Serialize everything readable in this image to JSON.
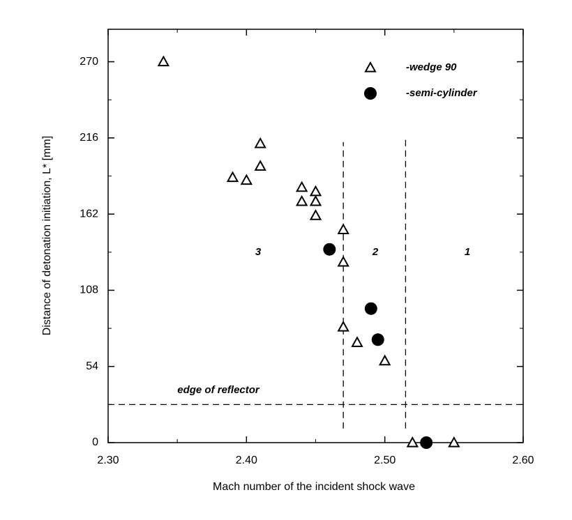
{
  "chart_data": {
    "type": "scatter",
    "xlabel": "Mach number of the incident shock wave",
    "ylabel": "Distance of detonation initiation, L* [mm]",
    "xlim": [
      2.3,
      2.6
    ],
    "ylim": [
      0,
      293
    ],
    "xticks": [
      {
        "value": 2.3,
        "label": "2.30"
      },
      {
        "value": 2.4,
        "label": "2.40"
      },
      {
        "value": 2.5,
        "label": "2.50"
      },
      {
        "value": 2.6,
        "label": "2.60"
      }
    ],
    "yticks": [
      0,
      54,
      108,
      162,
      216,
      270
    ],
    "series": [
      {
        "name": "-wedge 90",
        "marker": "triangle",
        "color": "#000000",
        "x": [
          2.34,
          2.41,
          2.41,
          2.39,
          2.4,
          2.44,
          2.44,
          2.45,
          2.45,
          2.45,
          2.47,
          2.47,
          2.47,
          2.48,
          2.5,
          2.52,
          2.55
        ],
        "values": [
          270,
          212,
          196,
          188,
          186,
          181,
          171,
          178,
          171,
          161,
          151,
          128,
          82,
          71,
          58,
          0,
          0
        ]
      },
      {
        "name": "-semi-cylinder",
        "marker": "circle",
        "color": "#000000",
        "x": [
          2.46,
          2.49,
          2.495,
          2.53
        ],
        "values": [
          137,
          95,
          73,
          0
        ]
      }
    ],
    "hlines": [
      27
    ],
    "vlines": [
      {
        "x": 2.47,
        "y": [
          10,
          213
        ]
      },
      {
        "x": 2.515,
        "y": [
          10,
          215
        ]
      }
    ],
    "annotations": [
      "3",
      "2",
      "1",
      "edge of reflector"
    ]
  }
}
